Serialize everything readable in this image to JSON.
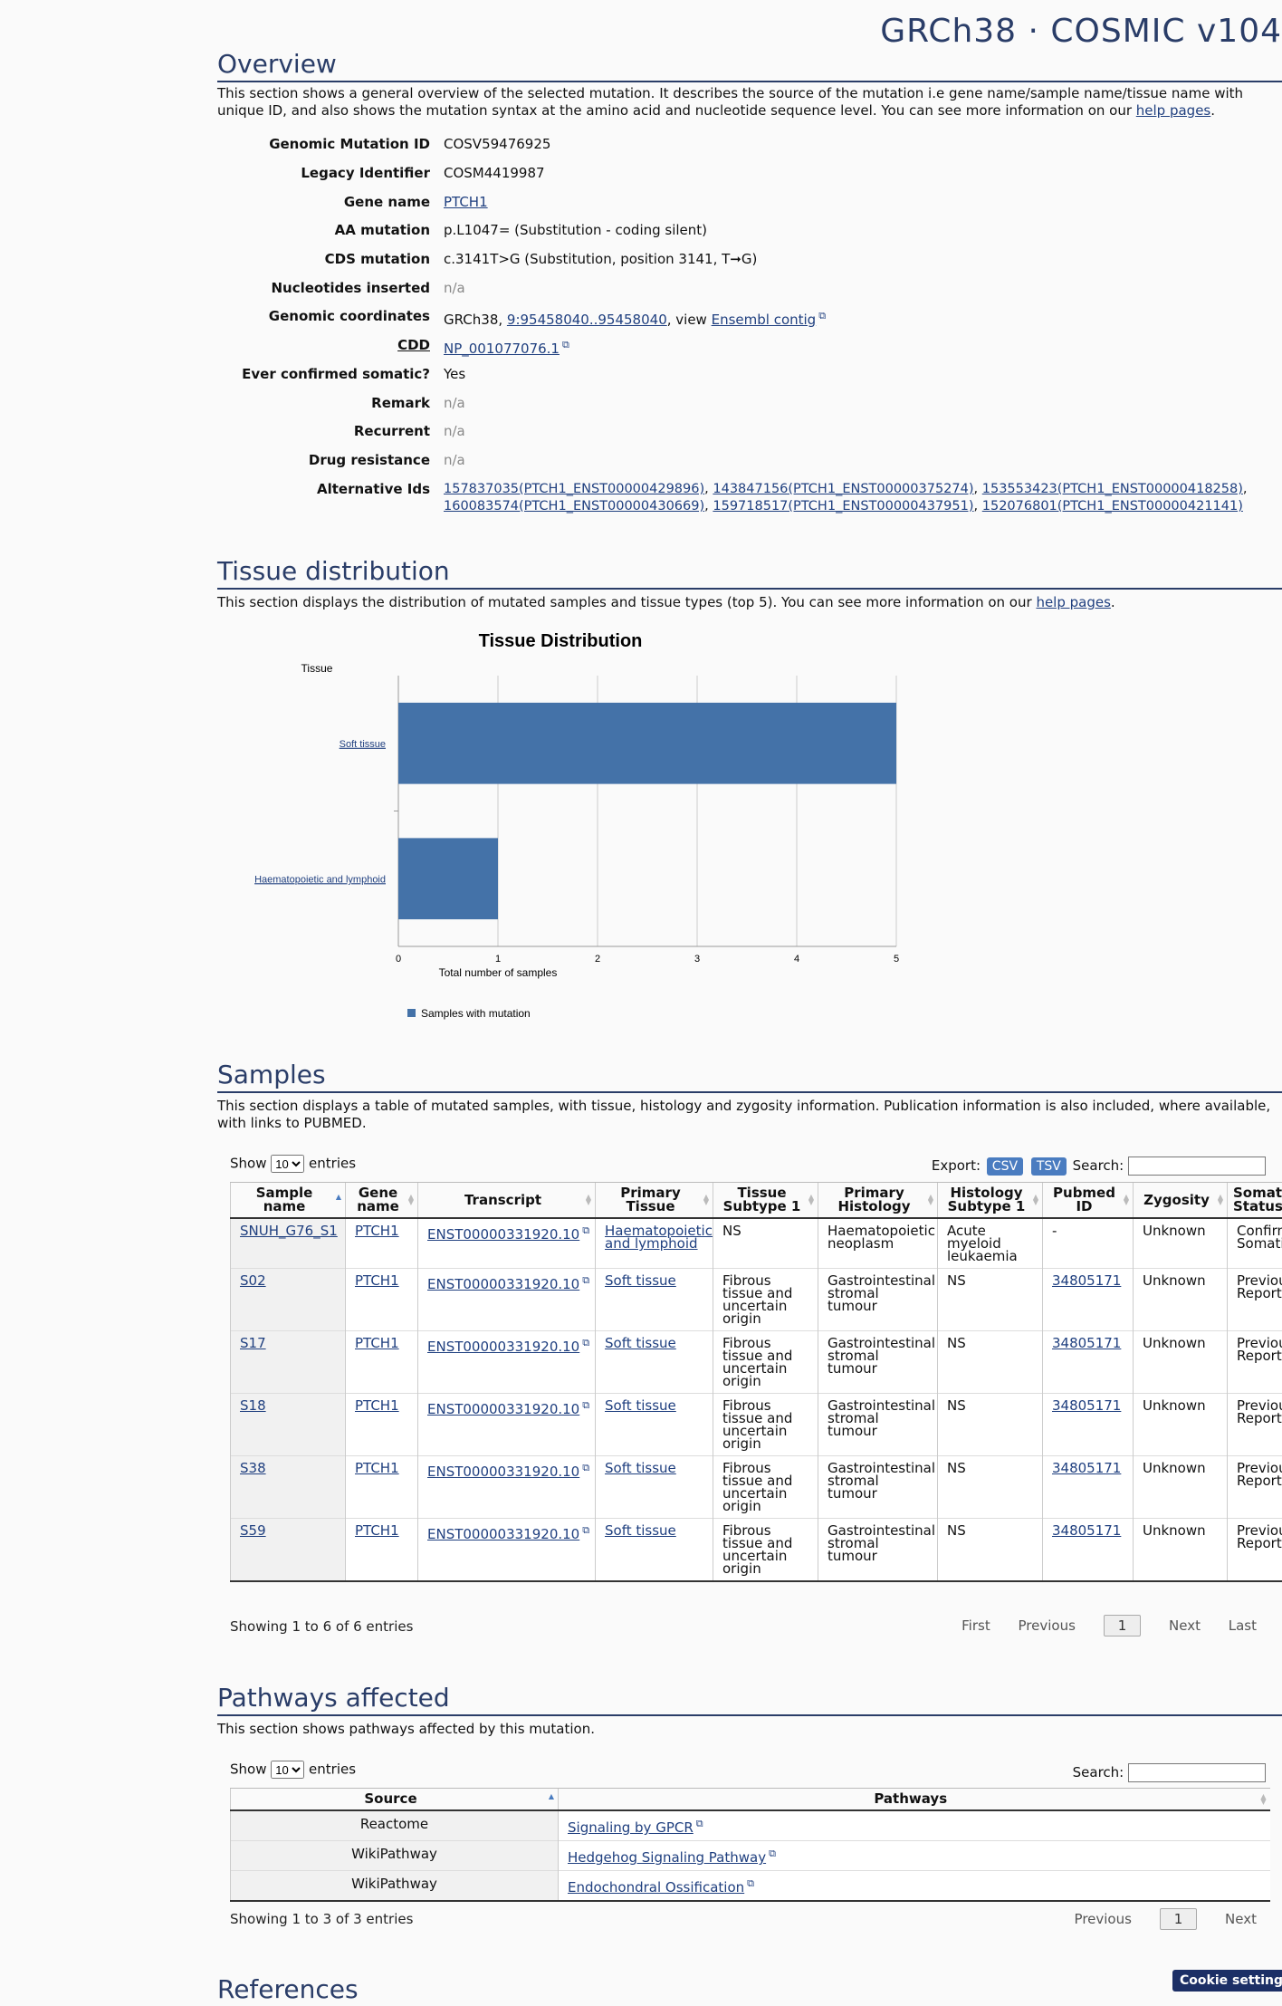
{
  "brand": "GRCh38 · COSMIC v104",
  "overview": {
    "title": "Overview",
    "desc_text": "This section shows a general overview of the selected mutation. It describes the source of the mutation i.e gene name/sample name/tissue name with unique ID, and also shows the mutation syntax at the amino acid and nucleotide sequence level. You can see more information on our ",
    "help_link": "help pages",
    "desc_end": ".",
    "fields": {
      "genomic_mutation_id": {
        "label": "Genomic Mutation ID",
        "value": "COSV59476925"
      },
      "legacy_identifier": {
        "label": "Legacy Identifier",
        "value": "COSM4419987"
      },
      "gene_name": {
        "label": "Gene name",
        "value": "PTCH1"
      },
      "aa_mutation": {
        "label": "AA mutation",
        "value": "p.L1047= (Substitution - coding silent)"
      },
      "cds_mutation": {
        "label": "CDS mutation",
        "value": "c.3141T>G (Substitution, position 3141, T➞G)"
      },
      "nucleotides_inserted": {
        "label": "Nucleotides inserted",
        "value": "n/a"
      },
      "genomic_coordinates": {
        "label": "Genomic coordinates",
        "prefix": "GRCh38, ",
        "coord_link": "9:95458040..95458040",
        "mid": ", view ",
        "ensembl_link": "Ensembl contig"
      },
      "cdd": {
        "label": "CDD",
        "link": "NP_001077076.1"
      },
      "ever_confirmed_somatic": {
        "label": "Ever confirmed somatic?",
        "value": "Yes"
      },
      "remark": {
        "label": "Remark",
        "value": "n/a"
      },
      "recurrent": {
        "label": "Recurrent",
        "value": "n/a"
      },
      "drug_resistance": {
        "label": "Drug resistance",
        "value": "n/a"
      },
      "alternative_ids": {
        "label": "Alternative Ids",
        "ids": [
          "157837035(PTCH1_ENST00000429896)",
          "143847156(PTCH1_ENST00000375274)",
          "153553423(PTCH1_ENST00000418258)",
          "160083574(PTCH1_ENST00000430669)",
          "159718517(PTCH1_ENST00000437951)",
          "152076801(PTCH1_ENST00000421141)"
        ],
        "separator": ","
      }
    }
  },
  "tissue": {
    "title": "Tissue distribution",
    "desc_text": "This section displays the distribution of mutated samples and tissue types (top 5). You can see more information on our ",
    "help_link": "help pages",
    "desc_end": "."
  },
  "chart_data": {
    "type": "bar",
    "orientation": "horizontal",
    "title": "Tissue Distribution",
    "ylabel": "Tissue",
    "xlabel": "Total number of samples",
    "categories": [
      "Soft tissue",
      "Haematopoietic and lymphoid"
    ],
    "series": [
      {
        "name": "Samples with mutation",
        "values": [
          5,
          1
        ],
        "color": "#4472a8"
      }
    ],
    "xlim": [
      0,
      5
    ],
    "xticks": [
      "0",
      "1",
      "2",
      "3",
      "4",
      "5"
    ],
    "grid": true,
    "legend_position": "bottom-left"
  },
  "samples": {
    "title": "Samples",
    "desc": "This section displays a table of mutated samples, with tissue, histology and zygosity information. Publication information is also included, where available, with links to PUBMED.",
    "show_label": "Show",
    "show_value": "10",
    "entries_label": "entries",
    "export_label": "Export:",
    "csv": "CSV",
    "tsv": "TSV",
    "search_label": "Search:",
    "columns": [
      "Sample name",
      "Gene name",
      "Transcript",
      "Primary Tissue",
      "Tissue Subtype 1",
      "Primary Histology",
      "Histology Subtype 1",
      "Pubmed ID",
      "Zygosity",
      "Somatic Status"
    ],
    "rows": [
      {
        "sample": "SNUH_G76_S1",
        "gene": "PTCH1",
        "transcript": "ENST00000331920.10",
        "tissue": "Haematopoietic and lymphoid",
        "subtype": "NS",
        "histology": "Haematopoietic neoplasm",
        "hist_subtype": "Acute myeloid leukaemia",
        "pubmed": "-",
        "zygosity": "Unknown",
        "status": "Confirmed Somatic"
      },
      {
        "sample": "S02",
        "gene": "PTCH1",
        "transcript": "ENST00000331920.10",
        "tissue": "Soft tissue",
        "subtype": "Fibrous tissue and uncertain origin",
        "histology": "Gastrointestinal stromal tumour",
        "hist_subtype": "NS",
        "pubmed": "34805171",
        "zygosity": "Unknown",
        "status": "Previously Reported"
      },
      {
        "sample": "S17",
        "gene": "PTCH1",
        "transcript": "ENST00000331920.10",
        "tissue": "Soft tissue",
        "subtype": "Fibrous tissue and uncertain origin",
        "histology": "Gastrointestinal stromal tumour",
        "hist_subtype": "NS",
        "pubmed": "34805171",
        "zygosity": "Unknown",
        "status": "Previously Reported"
      },
      {
        "sample": "S18",
        "gene": "PTCH1",
        "transcript": "ENST00000331920.10",
        "tissue": "Soft tissue",
        "subtype": "Fibrous tissue and uncertain origin",
        "histology": "Gastrointestinal stromal tumour",
        "hist_subtype": "NS",
        "pubmed": "34805171",
        "zygosity": "Unknown",
        "status": "Previously Reported"
      },
      {
        "sample": "S38",
        "gene": "PTCH1",
        "transcript": "ENST00000331920.10",
        "tissue": "Soft tissue",
        "subtype": "Fibrous tissue and uncertain origin",
        "histology": "Gastrointestinal stromal tumour",
        "hist_subtype": "NS",
        "pubmed": "34805171",
        "zygosity": "Unknown",
        "status": "Previously Reported"
      },
      {
        "sample": "S59",
        "gene": "PTCH1",
        "transcript": "ENST00000331920.10",
        "tissue": "Soft tissue",
        "subtype": "Fibrous tissue and uncertain origin",
        "histology": "Gastrointestinal stromal tumour",
        "hist_subtype": "NS",
        "pubmed": "34805171",
        "zygosity": "Unknown",
        "status": "Previously Reported"
      }
    ],
    "info": "Showing 1 to 6 of 6 entries",
    "paging": {
      "first": "First",
      "previous": "Previous",
      "current": "1",
      "next": "Next",
      "last": "Last"
    }
  },
  "pathways": {
    "title": "Pathways affected",
    "desc": "This section shows pathways affected by this mutation.",
    "show_label": "Show",
    "show_value": "10",
    "entries_label": "entries",
    "search_label": "Search:",
    "columns": [
      "Source",
      "Pathways"
    ],
    "rows": [
      {
        "source": "Reactome",
        "pathway": "Signaling by GPCR"
      },
      {
        "source": "WikiPathway",
        "pathway": "Hedgehog Signaling Pathway"
      },
      {
        "source": "WikiPathway",
        "pathway": "Endochondral Ossification"
      }
    ],
    "info": "Showing 1 to 3 of 3 entries",
    "paging": {
      "previous": "Previous",
      "current": "1",
      "next": "Next"
    }
  },
  "references": {
    "title": "References"
  },
  "cookie_button": "Cookie settings"
}
